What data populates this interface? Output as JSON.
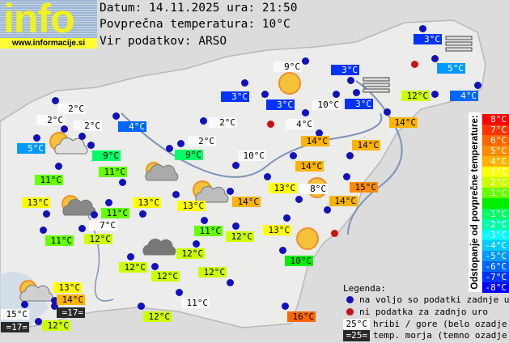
{
  "logo": {
    "word": "info",
    "url": "www.informacije.si"
  },
  "header": {
    "date_line": "Datum: 14.11.2025 ura: 21:50",
    "avg_line": "Povprečna temperatura: 10°C",
    "source_line": "Vir podatkov: ARSO"
  },
  "average_temperature": 10,
  "stations": [
    {
      "t": "3°C",
      "v": 3
    },
    {
      "t": "5°C",
      "v": 5
    },
    {
      "t": "3°C",
      "v": 3
    },
    {
      "t": "9°C",
      "v": 9,
      "kind": "m"
    },
    {
      "t": "3°C",
      "v": 3
    },
    {
      "t": "3°C",
      "v": 3
    },
    {
      "t": "10°C",
      "v": 10,
      "kind": "m"
    },
    {
      "t": "3°C",
      "v": 3
    },
    {
      "t": "12°C",
      "v": 12
    },
    {
      "t": "4°C",
      "v": 4
    },
    {
      "t": "2°C",
      "v": 2,
      "kind": "m"
    },
    {
      "t": "4°C",
      "v": 4,
      "kind": "m"
    },
    {
      "t": "14°C",
      "v": 14
    },
    {
      "t": "14°C",
      "v": 14
    },
    {
      "t": "14°C",
      "v": 14
    },
    {
      "t": "10°C",
      "v": 10,
      "kind": "m"
    },
    {
      "t": "14°C",
      "v": 14
    },
    {
      "t": "13°C",
      "v": 13
    },
    {
      "t": "8°C",
      "v": 8,
      "kind": "m"
    },
    {
      "t": "15°C",
      "v": 15
    },
    {
      "t": "14°C",
      "v": 14
    },
    {
      "t": "14°C",
      "v": 14
    },
    {
      "t": "2°C",
      "v": 2,
      "kind": "m"
    },
    {
      "t": "2°C",
      "v": 2,
      "kind": "m"
    },
    {
      "t": "2°C",
      "v": 2,
      "kind": "m"
    },
    {
      "t": "4°C",
      "v": 4
    },
    {
      "t": "5°C",
      "v": 5
    },
    {
      "t": "9°C",
      "v": 9
    },
    {
      "t": "11°C",
      "v": 11
    },
    {
      "t": "11°C",
      "v": 11
    },
    {
      "t": "13°C",
      "v": 13
    },
    {
      "t": "11°C",
      "v": 11
    },
    {
      "t": "7°C",
      "v": 7,
      "kind": "m"
    },
    {
      "t": "12°C",
      "v": 12
    },
    {
      "t": "11°C",
      "v": 11
    },
    {
      "t": "13°C",
      "v": 13
    },
    {
      "t": "9°C",
      "v": 9
    },
    {
      "t": "2°C",
      "v": 2,
      "kind": "m"
    },
    {
      "t": "13°C",
      "v": 13
    },
    {
      "t": "11°C",
      "v": 11
    },
    {
      "t": "12°C",
      "v": 12
    },
    {
      "t": "13°C",
      "v": 13
    },
    {
      "t": "10°C",
      "v": 10
    },
    {
      "t": "12°C",
      "v": 12
    },
    {
      "t": "12°C",
      "v": 12
    },
    {
      "t": "12°C",
      "v": 12
    },
    {
      "t": "12°C",
      "v": 12
    },
    {
      "t": "11°C",
      "v": 11,
      "kind": "m"
    },
    {
      "t": "12°C",
      "v": 12
    },
    {
      "t": "16°C",
      "v": 16
    },
    {
      "t": "13°C",
      "v": 13
    },
    {
      "t": "14°C",
      "v": 14
    },
    {
      "t": "=17=",
      "v": 17,
      "kind": "s"
    },
    {
      "t": "15°C",
      "v": 15,
      "kind": "m"
    },
    {
      "t": "=17=",
      "v": 17,
      "kind": "s"
    },
    {
      "t": "12°C",
      "v": 12
    }
  ],
  "scale": {
    "title": "Odstopanje od povprečne temperature:",
    "rows": [
      {
        "label": "8°C",
        "color": "#ff0000"
      },
      {
        "label": "7°C",
        "color": "#ff3300"
      },
      {
        "label": "6°C",
        "color": "#ff6600"
      },
      {
        "label": "5°C",
        "color": "#ff8c00"
      },
      {
        "label": "4°C",
        "color": "#ffb300"
      },
      {
        "label": "3°C",
        "color": "#ffff00"
      },
      {
        "label": "2°C",
        "color": "#ccff00"
      },
      {
        "label": "1°C",
        "color": "#66ff00"
      },
      {
        "label": "",
        "color": "#00ee00"
      },
      {
        "label": "-1°C",
        "color": "#00ff66"
      },
      {
        "label": "-2°C",
        "color": "#00ffaa"
      },
      {
        "label": "-3°C",
        "color": "#00ffff"
      },
      {
        "label": "-4°C",
        "color": "#00ccff"
      },
      {
        "label": "-5°C",
        "color": "#0099ff"
      },
      {
        "label": "-6°C",
        "color": "#0066ff"
      },
      {
        "label": "-7°C",
        "color": "#0033ff"
      },
      {
        "label": "-8°C",
        "color": "#0000ff"
      }
    ]
  },
  "legend": {
    "title": "Legenda:",
    "blue_dot": "na voljo so podatki zadnje ure",
    "red_dot": "ni podatka za zadnjo uro",
    "mountain_sample": "25°C",
    "mountain_text": "hribi / gore (belo ozadje)",
    "sea_sample": "=25=",
    "sea_text": "temp. morja (temno ozadje)"
  },
  "colors": {
    "dot_ok": "#1010c0",
    "dot_missing": "#d01010"
  },
  "weather_icons": [
    "sun",
    "sun",
    "sun",
    "sun-cloud",
    "sun-cloud",
    "sun-cloud",
    "sun-cloud",
    "sun-dark-cloud",
    "dark-cloud",
    "fog",
    "fog"
  ]
}
